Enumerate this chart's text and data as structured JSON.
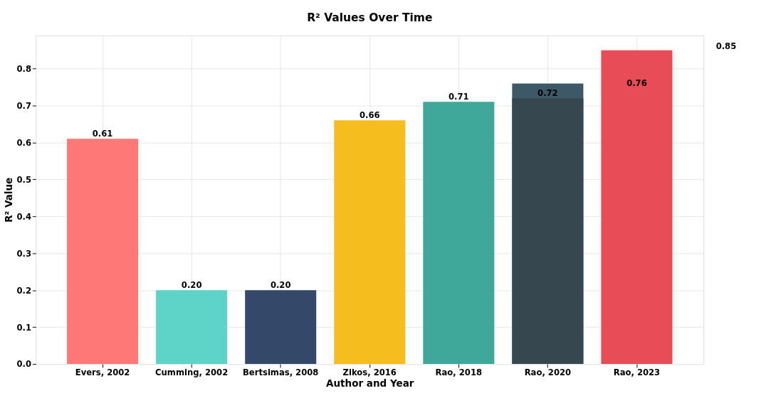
{
  "chart_data": {
    "type": "bar",
    "title": "R² Values Over Time",
    "xlabel": "Author and Year",
    "ylabel": "R² Value",
    "categories": [
      "Evers, 2002",
      "Cumming, 2002",
      "Bertsimas, 2008",
      "Zikos, 2016",
      "Rao, 2018",
      "Rao, 2020",
      "Rao, 2023"
    ],
    "series": [
      {
        "values": [
          0.61,
          0.2,
          0.2,
          0.66,
          0.71,
          0.76,
          0.85
        ],
        "colors": [
          "#ff7878",
          "#5ed4c9",
          "#34496a",
          "#f5be1e",
          "#40a89a",
          "#3d5866",
          "#e84c56"
        ]
      },
      {
        "values": [
          null,
          null,
          null,
          null,
          null,
          0.72,
          null
        ],
        "color": "#37474f"
      }
    ],
    "annotations": [
      {
        "text": "0.61",
        "x": "Evers, 2002",
        "y": 0.61
      },
      {
        "text": "0.20",
        "x": "Cumming, 2002",
        "y": 0.2
      },
      {
        "text": "0.20",
        "x": "Bertsimas, 2008",
        "y": 0.2
      },
      {
        "text": "0.66",
        "x": "Zikos, 2016",
        "y": 0.66
      },
      {
        "text": "0.71",
        "x": "Rao, 2018",
        "y": 0.71
      },
      {
        "text": "0.72",
        "x": "Rao, 2020",
        "y": 0.72
      },
      "0.76",
      "0.85"
    ],
    "ylim": [
      0,
      0.89
    ],
    "yticks": [
      {
        "value": 0,
        "label": "0.0"
      },
      0.1,
      0.2,
      0.3,
      0.4,
      0.5,
      0.6,
      0.7,
      0.8
    ],
    "grid": true
  }
}
